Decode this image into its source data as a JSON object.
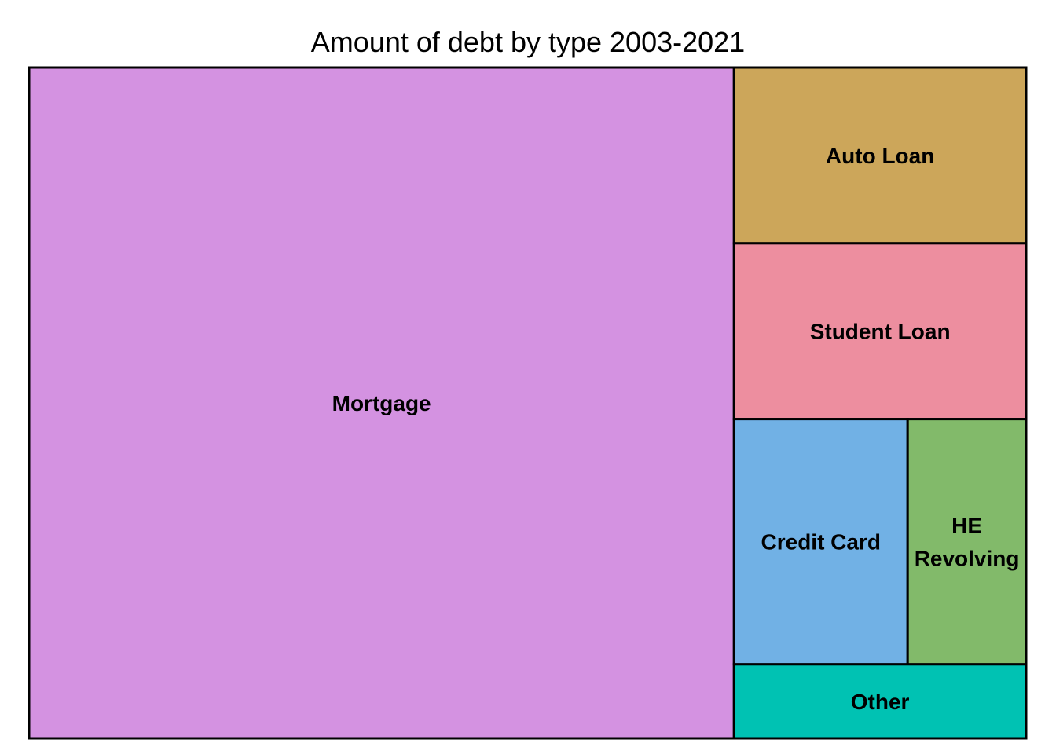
{
  "chart_data": {
    "type": "treemap",
    "title": "Amount of debt by type 2003-2021",
    "tiles": [
      {
        "label": "Mortgage",
        "value": 70.0,
        "color": "#D492E1"
      },
      {
        "label": "Auto Loan",
        "value": 7.6,
        "color": "#CCA65A"
      },
      {
        "label": "Student Loan",
        "value": 7.6,
        "color": "#ED8E9F"
      },
      {
        "label": "Credit Card",
        "value": 6.3,
        "color": "#71B1E5"
      },
      {
        "label": "HE Revolving",
        "value": 4.3,
        "color": "#82BA6A"
      },
      {
        "label": "Other",
        "value": 3.2,
        "color": "#00C2B3"
      }
    ]
  }
}
